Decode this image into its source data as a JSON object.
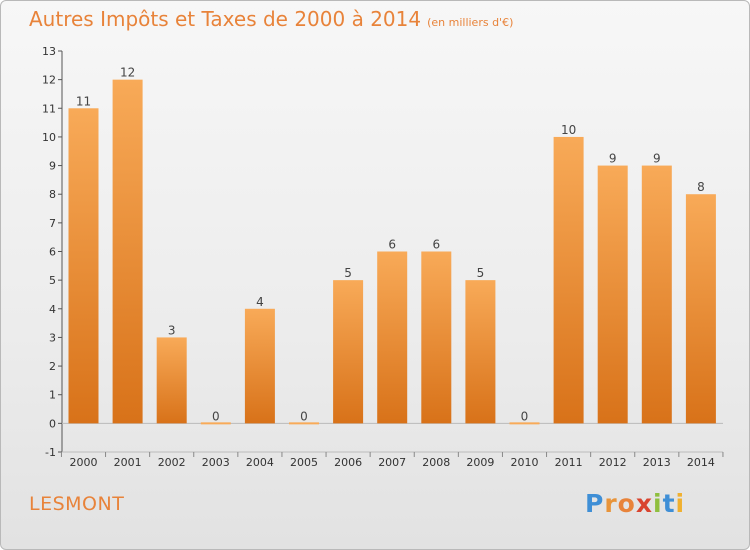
{
  "header": {
    "title": "Autres Impôts et Taxes de 2000 à 2014",
    "subtitle": "(en milliers d'€)"
  },
  "footer": {
    "town": "LESMONT",
    "logo": "Proxiti"
  },
  "colors": {
    "bar_top": "#f8aa58",
    "bar_bottom": "#d87219",
    "title": "#e8833a"
  },
  "chart_data": {
    "type": "bar",
    "title": "Autres Impôts et Taxes de 2000 à 2014",
    "subtitle": "(en milliers d'€)",
    "xlabel": "",
    "ylabel": "",
    "categories": [
      "2000",
      "2001",
      "2002",
      "2003",
      "2004",
      "2005",
      "2006",
      "2007",
      "2008",
      "2009",
      "2010",
      "2011",
      "2012",
      "2013",
      "2014"
    ],
    "values": [
      11,
      12,
      3,
      0,
      4,
      0,
      5,
      6,
      6,
      5,
      0,
      10,
      9,
      9,
      8
    ],
    "ylim": [
      -1,
      13
    ],
    "yticks": [
      -1,
      0,
      1,
      2,
      3,
      4,
      5,
      6,
      7,
      8,
      9,
      10,
      11,
      12,
      13
    ],
    "grid": false,
    "data_labels": true
  }
}
